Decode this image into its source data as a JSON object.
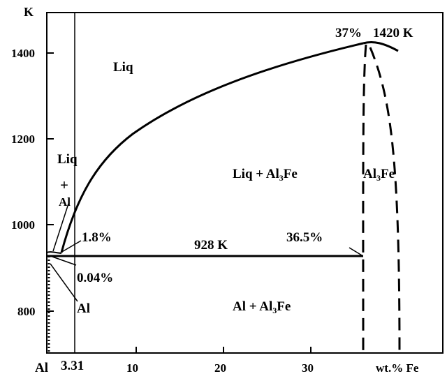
{
  "axes": {
    "y_unit": "K",
    "y_ticks": [
      "1400",
      "1200",
      "1000",
      "800"
    ],
    "x_origin": "Al",
    "x_ticks": [
      "10",
      "20",
      "30"
    ],
    "x_unit": "wt.% Fe",
    "marker_value": "3.31"
  },
  "regions": {
    "liq": "Liq",
    "liq_al_top": "Liq",
    "liq_al_plus": "+",
    "liq_al_bottom": "Al",
    "liq_al3fe": "Liq + Al",
    "al3fe_phase": "Al",
    "al_al3fe": "Al + Al",
    "al": "Al",
    "subscript": "3",
    "fe": "Fe"
  },
  "annotations": {
    "peak_comp": "37%",
    "peak_temp": "1420 K",
    "eutectic_liq_comp": "1.8%",
    "eutectic_temp": "928 K",
    "eutectic_al3fe_comp": "36.5%",
    "al_solubility": "0.04%"
  }
}
